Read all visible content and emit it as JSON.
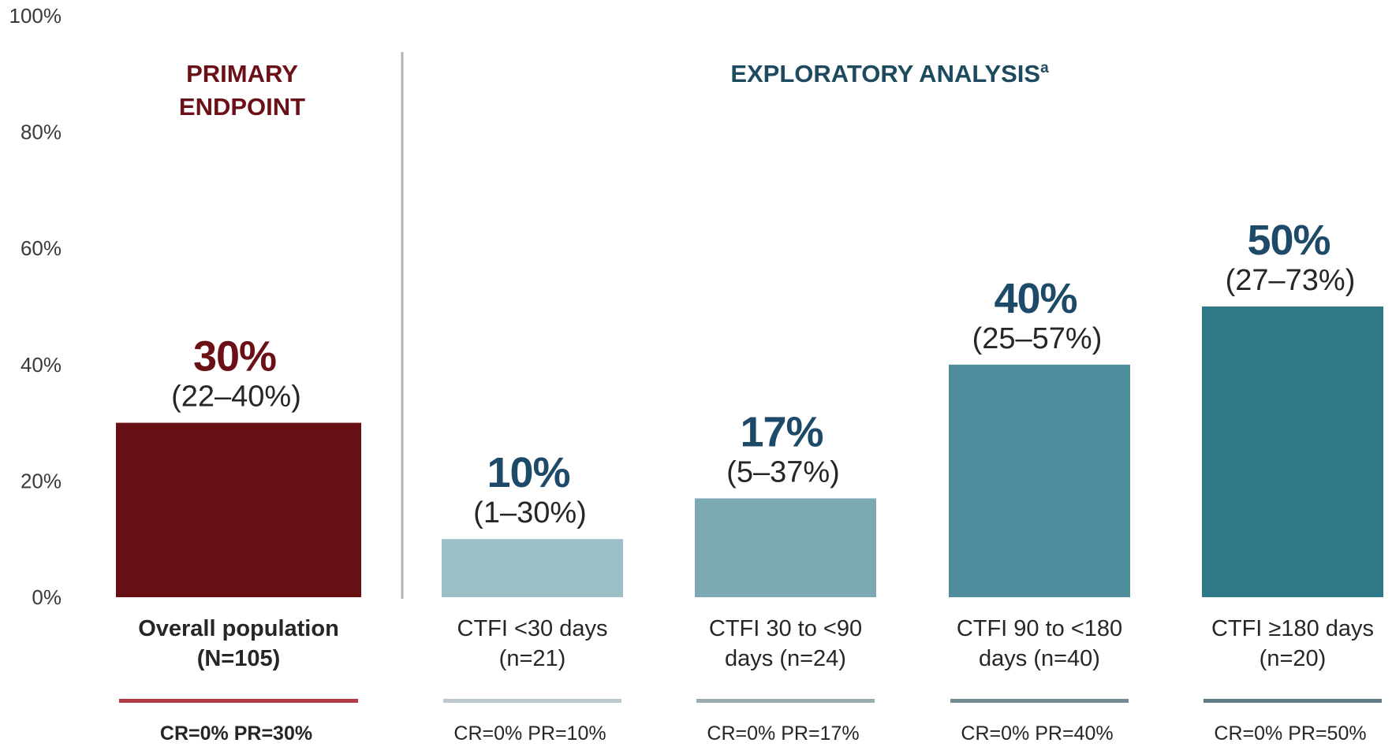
{
  "chart_data": {
    "type": "bar",
    "ylim": [
      0,
      100
    ],
    "yticks": [
      "0%",
      "20%",
      "40%",
      "60%",
      "80%",
      "100%"
    ],
    "sections": [
      {
        "title_lines": [
          "PRIMARY",
          "ENDPOINT"
        ],
        "color": "#6b1016"
      },
      {
        "title": "EXPLORATORY ANALYSIS",
        "superscript": "a",
        "color": "#1d4a5e"
      }
    ],
    "categories": [
      {
        "label_lines": [
          "Overall population",
          "(N=105)"
        ],
        "value": 30,
        "value_label": "30%",
        "ci": "(22–40%)",
        "cr_pr": "CR=0%  PR=30%",
        "bar_color": "#661014",
        "value_color": "#6b1016",
        "underline_color": "#b43c44",
        "primary": true
      },
      {
        "label_lines": [
          "CTFI <30 days",
          "(n=21)"
        ],
        "value": 10,
        "value_label": "10%",
        "ci": "(1–30%)",
        "cr_pr": "CR=0%  PR=10%",
        "bar_color": "#9bbec7",
        "value_color": "#1d4a68",
        "underline_color": "#b9c9cc",
        "primary": false
      },
      {
        "label_lines": [
          "CTFI 30 to <90",
          "days (n=24)"
        ],
        "value": 17,
        "value_label": "17%",
        "ci": "(5–37%)",
        "cr_pr": "CR=0%  PR=17%",
        "bar_color": "#7ca9b4",
        "value_color": "#1d4a68",
        "underline_color": "#9aacb0",
        "primary": false
      },
      {
        "label_lines": [
          "CTFI 90 to <180",
          "days (n=40)"
        ],
        "value": 40,
        "value_label": "40%",
        "ci": "(25–57%)",
        "cr_pr": "CR=0%  PR=40%",
        "bar_color": "#4f8d9c",
        "value_color": "#1d4a68",
        "underline_color": "#728b92",
        "primary": false
      },
      {
        "label_lines": [
          "CTFI ≥180 days",
          "(n=20)"
        ],
        "value": 50,
        "value_label": "50%",
        "ci": "(27–73%)",
        "cr_pr": "CR=0%  PR=50%",
        "bar_color": "#2f7887",
        "value_color": "#1d4a68",
        "underline_color": "#5d7c84",
        "primary": false
      }
    ]
  }
}
